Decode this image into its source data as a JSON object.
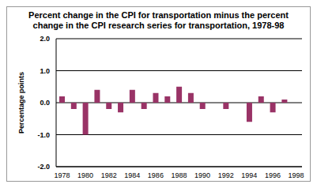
{
  "chart_data": {
    "type": "bar",
    "title": "Percent change in the CPI for transportation minus the percent change in the CPI research series for transportation, 1978-98",
    "y_label": "Percentage points",
    "categories": [
      "1978",
      null,
      "1980",
      null,
      "1982",
      null,
      "1984",
      null,
      "1986",
      null,
      "1988",
      null,
      "1990",
      null,
      "1992",
      null,
      "1994",
      null,
      "1996",
      null,
      "1998"
    ],
    "values": [
      0.2,
      -0.2,
      -1.0,
      0.4,
      -0.2,
      -0.3,
      0.4,
      -0.2,
      0.3,
      0.2,
      0.5,
      0.3,
      -0.2,
      0.0,
      -0.2,
      0.0,
      -0.6,
      0.2,
      -0.3,
      0.1,
      null
    ],
    "color": "#993366",
    "ylim": [
      -2,
      2
    ],
    "yticks": [
      {
        "value": -2,
        "label": "-2.0"
      },
      {
        "value": -1,
        "label": "-1.0"
      },
      {
        "value": 0,
        "label": "0.0"
      },
      {
        "value": 1,
        "label": "1.0"
      },
      {
        "value": 2,
        "label": "2.0"
      }
    ],
    "grid": true
  }
}
